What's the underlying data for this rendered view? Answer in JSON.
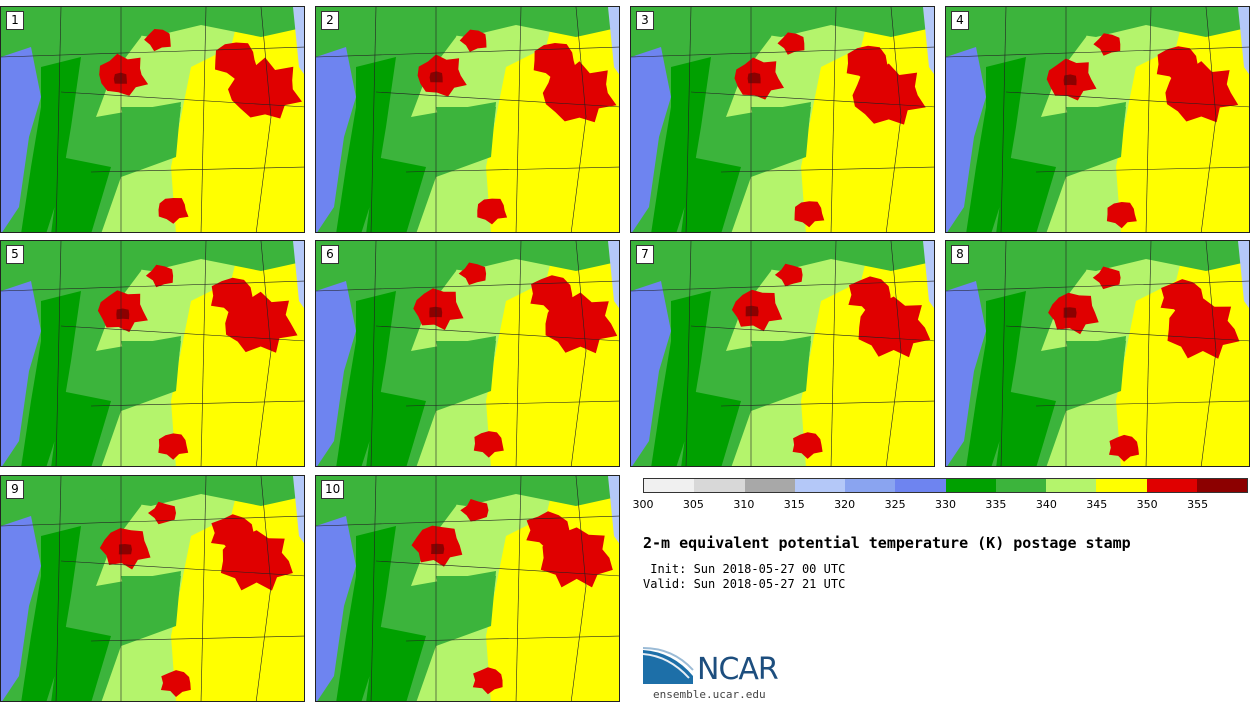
{
  "panels": [
    {
      "label": "1"
    },
    {
      "label": "2"
    },
    {
      "label": "3"
    },
    {
      "label": "4"
    },
    {
      "label": "5"
    },
    {
      "label": "6"
    },
    {
      "label": "7"
    },
    {
      "label": "8"
    },
    {
      "label": "9"
    },
    {
      "label": "10"
    }
  ],
  "colorbar": {
    "colors": [
      "#f0f0f0",
      "#d8d8d8",
      "#a8a8a8",
      "#b4c8f8",
      "#8aa4f0",
      "#6e84f0",
      "#00a000",
      "#3cb43c",
      "#b4f46c",
      "#ffff00",
      "#e00000",
      "#8c0000"
    ],
    "ticks": [
      "300",
      "305",
      "310",
      "315",
      "320",
      "325",
      "330",
      "335",
      "340",
      "345",
      "350",
      "355"
    ]
  },
  "map_colors": {
    "water": "#6e84f0",
    "green_dark": "#00a000",
    "green_mid": "#3cb43c",
    "green_light": "#b4f46c",
    "yellow": "#ffff00",
    "red": "#e00000",
    "dark_red": "#8c0000",
    "lake": "#b4c8f8"
  },
  "title": "2-m equivalent potential temperature (K) postage stamp",
  "init": " Init: Sun 2018-05-27 00 UTC",
  "valid": "Valid: Sun 2018-05-27 21 UTC",
  "logo": {
    "name": "NCAR",
    "url": "ensemble.ucar.edu"
  }
}
